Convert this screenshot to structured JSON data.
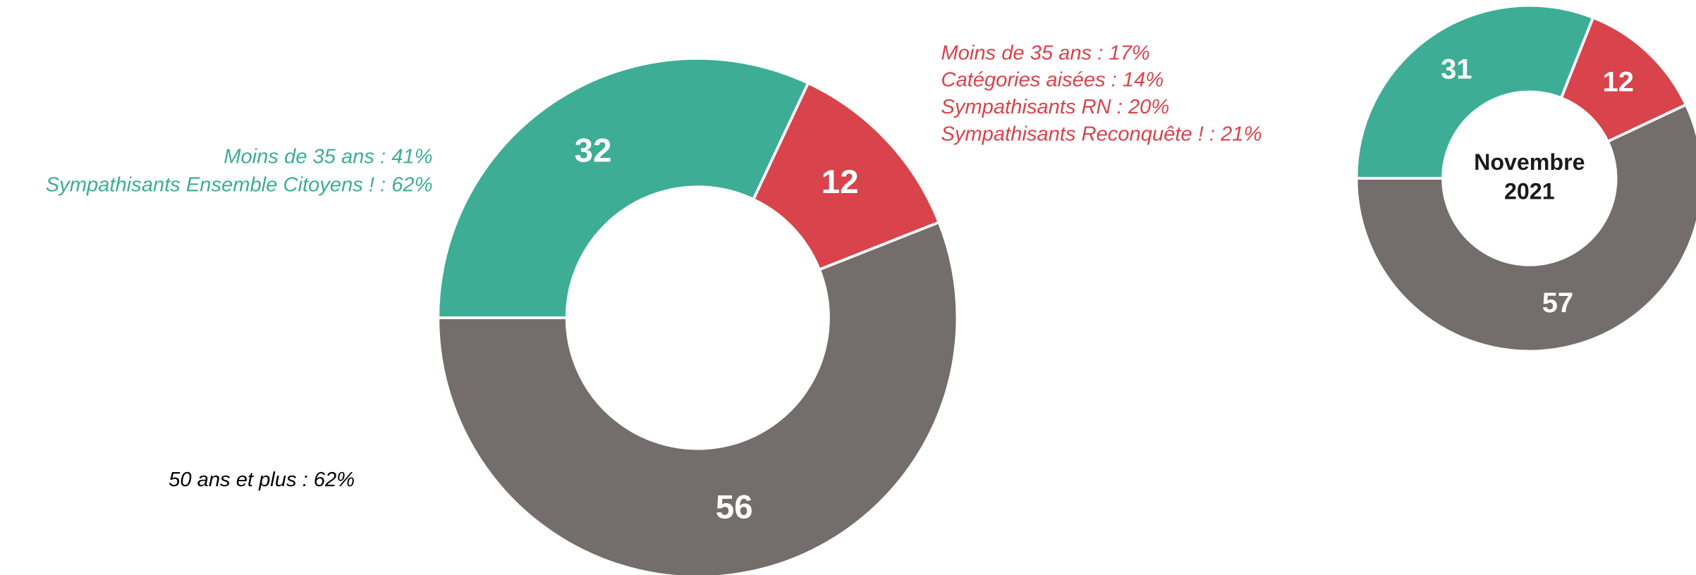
{
  "chart_data": [
    {
      "type": "pie",
      "values": [
        32,
        12,
        56
      ],
      "colors": [
        "#3dad95",
        "#d9434b",
        "#736e6c"
      ],
      "annotations": [
        {
          "color": "#3dad95",
          "lines": [
            "Moins de 35 ans : 41%",
            "Sympathisants Ensemble Citoyens ! : 62%"
          ]
        },
        {
          "color": "#d9434b",
          "lines": [
            "Moins de 35 ans : 17%",
            "Catégories aisées : 14%",
            "Sympathisants RN : 20%",
            "Sympathisants Reconquête ! : 21%"
          ]
        },
        {
          "color": "#000000",
          "lines": [
            "50 ans et plus : 62%"
          ]
        }
      ]
    },
    {
      "type": "pie",
      "values": [
        31,
        12,
        57
      ],
      "colors": [
        "#3dad95",
        "#d9434b",
        "#736e6c"
      ],
      "title_lines": [
        "Novembre",
        "2021"
      ]
    }
  ]
}
